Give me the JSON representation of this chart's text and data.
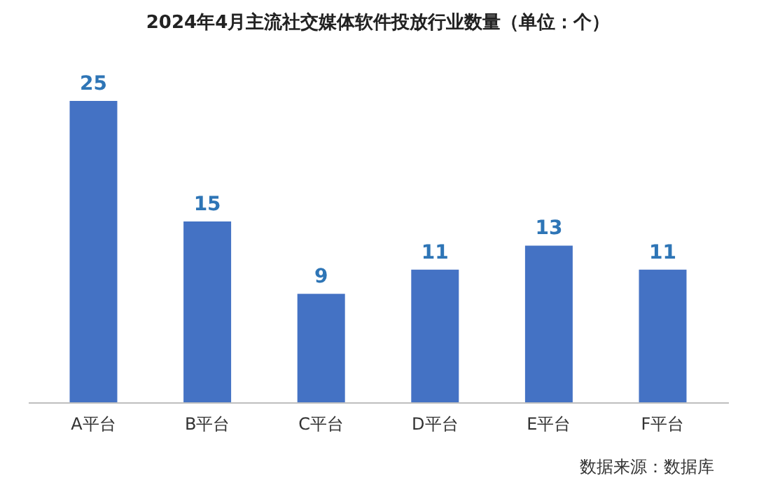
{
  "chart_data": {
    "type": "bar",
    "title": "2024年4月主流社交媒体软件投放行业数量（单位：个）",
    "categories": [
      "A平台",
      "B平台",
      "C平台",
      "D平台",
      "E平台",
      "F平台"
    ],
    "values": [
      25,
      15,
      9,
      11,
      13,
      11
    ],
    "color": "#4472c4",
    "data_labels": true,
    "grid": false,
    "tick_labels": "x",
    "annotations": [
      "数据来源：数据库"
    ]
  }
}
